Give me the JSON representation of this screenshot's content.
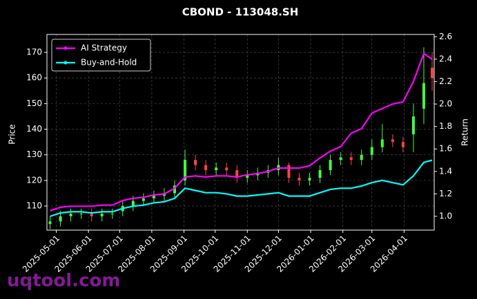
{
  "chart_data": {
    "type": "candlestick",
    "title": "CBOND - 113048.SH",
    "ylabel": "Price",
    "y2label": "Return",
    "watermark": "uqtool.com",
    "x": [
      "2025-04-25",
      "2025-05-05",
      "2025-05-15",
      "2025-05-25",
      "2025-06-04",
      "2025-06-14",
      "2025-06-24",
      "2025-07-04",
      "2025-07-14",
      "2025-07-24",
      "2025-08-03",
      "2025-08-13",
      "2025-08-23",
      "2025-09-02",
      "2025-09-12",
      "2025-09-22",
      "2025-10-02",
      "2025-10-12",
      "2025-10-22",
      "2025-11-01",
      "2025-11-11",
      "2025-11-21",
      "2025-12-01",
      "2025-12-11",
      "2025-12-21",
      "2025-12-31",
      "2026-01-10",
      "2026-01-20",
      "2026-01-30",
      "2026-02-09",
      "2026-02-19",
      "2026-03-01",
      "2026-03-11",
      "2026-03-21",
      "2026-03-31",
      "2026-04-10",
      "2026-04-20",
      "2026-04-28"
    ],
    "open": [
      103,
      104,
      106,
      107,
      107,
      106,
      107,
      108,
      110,
      112,
      113,
      114,
      115,
      120,
      128,
      126,
      124,
      125,
      124,
      121,
      122,
      123,
      124,
      126,
      121,
      120,
      121,
      124,
      128,
      129,
      128,
      130,
      133,
      136,
      135,
      138,
      148,
      164
    ],
    "high": [
      106,
      108,
      109,
      109,
      109,
      109,
      109,
      112,
      114,
      115,
      116,
      117,
      120,
      132,
      130,
      128,
      127,
      127,
      126,
      124,
      125,
      126,
      129,
      127,
      123,
      123,
      126,
      130,
      131,
      131,
      132,
      136,
      142,
      138,
      137,
      150,
      172,
      170
    ],
    "low": [
      101,
      102,
      104,
      105,
      104,
      104,
      105,
      106,
      108,
      110,
      111,
      112,
      113,
      118,
      124,
      122,
      122,
      122,
      119,
      119,
      120,
      121,
      122,
      119,
      118,
      118,
      119,
      122,
      126,
      126,
      126,
      128,
      131,
      133,
      131,
      131,
      142,
      155
    ],
    "close": [
      104,
      106,
      107,
      107,
      106,
      107,
      107,
      110,
      112,
      113,
      114,
      115,
      118,
      128,
      126,
      124,
      125,
      124,
      121,
      122,
      123,
      124,
      126,
      121,
      120,
      121,
      124,
      128,
      129,
      128,
      130,
      133,
      136,
      135,
      133,
      145,
      158,
      160
    ],
    "up_color": "#44ff44",
    "down_color": "#ff4444",
    "series": [
      {
        "name": "AI Strategy",
        "color": "#ff00ff",
        "axis": "y2",
        "values": [
          1.05,
          1.08,
          1.09,
          1.09,
          1.09,
          1.1,
          1.1,
          1.14,
          1.16,
          1.17,
          1.19,
          1.2,
          1.25,
          1.35,
          1.36,
          1.35,
          1.36,
          1.36,
          1.35,
          1.37,
          1.38,
          1.4,
          1.43,
          1.43,
          1.43,
          1.45,
          1.52,
          1.58,
          1.62,
          1.74,
          1.78,
          1.92,
          1.96,
          2.0,
          2.02,
          2.2,
          2.45,
          2.4
        ]
      },
      {
        "name": "Buy-and-Hold",
        "color": "#00ffff",
        "axis": "y2",
        "values": [
          1.0,
          1.03,
          1.04,
          1.04,
          1.03,
          1.04,
          1.04,
          1.07,
          1.09,
          1.1,
          1.12,
          1.13,
          1.16,
          1.25,
          1.23,
          1.21,
          1.21,
          1.2,
          1.18,
          1.18,
          1.19,
          1.2,
          1.21,
          1.18,
          1.18,
          1.18,
          1.21,
          1.24,
          1.25,
          1.25,
          1.27,
          1.3,
          1.32,
          1.3,
          1.28,
          1.36,
          1.48,
          1.5
        ]
      }
    ],
    "xlim": [
      "2025-04-22",
      "2026-04-30"
    ],
    "xticks": [
      "2025-05-01",
      "2025-06-01",
      "2025-07-01",
      "2025-08-01",
      "2025-09-01",
      "2025-10-01",
      "2025-11-01",
      "2025-12-01",
      "2026-01-01",
      "2026-02-01",
      "2026-03-01",
      "2026-04-01"
    ],
    "ylim": [
      100.6,
      177
    ],
    "yticks": [
      110,
      120,
      130,
      140,
      150,
      160,
      170
    ],
    "y2lim": [
      0.877,
      2.62
    ],
    "y2ticks": [
      {
        "value": 1,
        "label": "1.0"
      },
      1.2,
      1.4,
      1.6,
      1.8,
      {
        "value": 2,
        "label": "2.0"
      },
      2.2,
      2.4,
      2.6
    ],
    "grid": true,
    "legend": "upper left"
  }
}
